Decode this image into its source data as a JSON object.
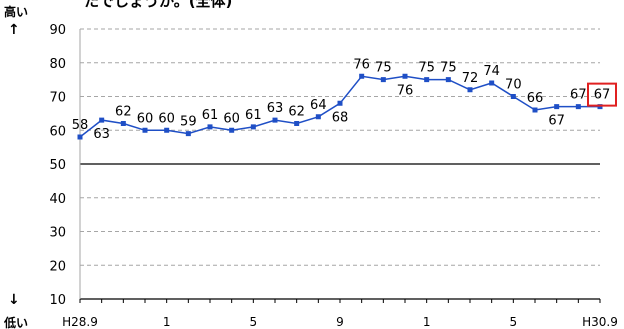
{
  "header": {
    "top_cut_text": "たでしょうか。(全体)",
    "high_label": "高い",
    "high_arrow": "↑",
    "low_arrow": "↓",
    "low_label": "低い"
  },
  "chart_data": {
    "type": "line",
    "title": "",
    "xlabel": "",
    "ylabel": "",
    "ylim": [
      10,
      90
    ],
    "yticks": [
      10,
      20,
      30,
      40,
      50,
      60,
      70,
      80,
      90
    ],
    "grid": true,
    "grid_style": "dashed",
    "reference_line": 50,
    "x_tick_labels": [
      {
        "index": 0,
        "label": "H28.9"
      },
      {
        "index": 4,
        "label": "1"
      },
      {
        "index": 8,
        "label": "5"
      },
      {
        "index": 12,
        "label": "9"
      },
      {
        "index": 16,
        "label": "1"
      },
      {
        "index": 20,
        "label": "5"
      },
      {
        "index": 24,
        "label": "H30.9"
      }
    ],
    "series": [
      {
        "values": [
          58,
          63,
          62,
          60,
          60,
          59,
          61,
          60,
          61,
          63,
          62,
          64,
          68,
          76,
          75,
          76,
          75,
          75,
          72,
          74,
          70,
          66,
          67,
          67,
          67
        ],
        "color": "#1f4fc6"
      }
    ],
    "data_labels": [
      {
        "index": 0,
        "text": "58",
        "pos": "above"
      },
      {
        "index": 1,
        "text": "63",
        "pos": "below"
      },
      {
        "index": 2,
        "text": "62",
        "pos": "above"
      },
      {
        "index": 3,
        "text": "60",
        "pos": "above"
      },
      {
        "index": 4,
        "text": "60",
        "pos": "above"
      },
      {
        "index": 5,
        "text": "59",
        "pos": "above"
      },
      {
        "index": 6,
        "text": "61",
        "pos": "above"
      },
      {
        "index": 7,
        "text": "60",
        "pos": "above"
      },
      {
        "index": 8,
        "text": "61",
        "pos": "above"
      },
      {
        "index": 9,
        "text": "63",
        "pos": "above"
      },
      {
        "index": 10,
        "text": "62",
        "pos": "above"
      },
      {
        "index": 11,
        "text": "64",
        "pos": "above"
      },
      {
        "index": 12,
        "text": "68",
        "pos": "below"
      },
      {
        "index": 13,
        "text": "76",
        "pos": "above"
      },
      {
        "index": 14,
        "text": "75",
        "pos": "above"
      },
      {
        "index": 15,
        "text": "76",
        "pos": "below"
      },
      {
        "index": 16,
        "text": "75",
        "pos": "above"
      },
      {
        "index": 17,
        "text": "75",
        "pos": "above"
      },
      {
        "index": 18,
        "text": "72",
        "pos": "above"
      },
      {
        "index": 19,
        "text": "74",
        "pos": "above"
      },
      {
        "index": 20,
        "text": "70",
        "pos": "above"
      },
      {
        "index": 21,
        "text": "66",
        "pos": "above"
      },
      {
        "index": 22,
        "text": "67",
        "pos": "below"
      },
      {
        "index": 23,
        "text": "67",
        "pos": "above"
      },
      {
        "index": 24,
        "text": "67",
        "pos": "above",
        "boxed": true,
        "box_color": "#e02020"
      }
    ]
  }
}
